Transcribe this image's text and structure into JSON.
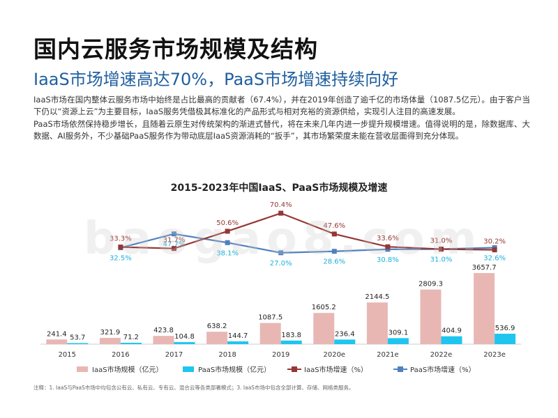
{
  "header": {
    "title": "国内云服务市场规模及结构",
    "subtitle": "IaaS市场增速高达70%，PaaS市场增速持续向好"
  },
  "intro": {
    "p1": "IaaS市场在国内整体云服务市场中始终是占比最高的贡献者（67.4%），并在2019年创造了逾千亿的市场体量（1087.5亿元）。由于客户当下仍以“资源上云”为主要目标，IaaS服务凭借极其标准化的产品形式与相对充裕的资源供给，实现引人注目的高速发展。",
    "p2": "PaaS市场依然保持稳步增长，且随着云原生对传统架构的渐进式替代，将在未来几年内进一步提升规模增速。值得说明的是，除数据库、大数据、AI服务外，不少基础PaaS服务作为带动底层IaaS资源消耗的“扳手”，其市场繁荣度未能在营收层面得到充分体现。"
  },
  "watermark": "baogao8.com",
  "footnote": "注释：1. IaaS与PaaS市场中均包含公有云、私有云、专有云、混合云等各类部署模式；3. IaaS市场中包含全部计算、存储、网络类服务。",
  "colors": {
    "iaas_bar": "#e8b7b4",
    "paas_bar": "#1ec6ef",
    "iaas_line": "#953735",
    "paas_line": "#4f81bd",
    "paas_label": "#1ab0dd"
  },
  "chart_data": {
    "type": "bar",
    "title": "2015-2023年中国IaaS、PaaS市场规模及增速",
    "categories": [
      "2015",
      "2016",
      "2017",
      "2018",
      "2019",
      "2020e",
      "2021e",
      "2022e",
      "2023e"
    ],
    "series": [
      {
        "name": "IaaS市场规模（亿元）",
        "type": "bar",
        "values": [
          241.4,
          321.9,
          423.8,
          638.2,
          1087.5,
          1605.2,
          2144.5,
          2809.3,
          3657.7
        ]
      },
      {
        "name": "PaaS市场规模（亿元）",
        "type": "bar",
        "values": [
          53.7,
          71.2,
          104.8,
          144.7,
          183.8,
          236.4,
          309.1,
          404.9,
          536.9
        ]
      },
      {
        "name": "IaaS市场增速（%）",
        "type": "line",
        "values": [
          null,
          33.3,
          31.7,
          50.6,
          70.4,
          47.6,
          33.6,
          31.0,
          30.2
        ],
        "labels": [
          "",
          "33.3%",
          "31.7%",
          "50.6%",
          "70.4%",
          "47.6%",
          "33.6%",
          "31.0%",
          "30.2%"
        ]
      },
      {
        "name": "PaaS市场增速（%）",
        "type": "line",
        "values": [
          null,
          32.5,
          47.7,
          38.1,
          27.0,
          28.6,
          30.8,
          31.0,
          32.6
        ],
        "labels": [
          "",
          "32.5%",
          "47.7%",
          "38.1%",
          "27.0%",
          "28.6%",
          "30.8%",
          "31.0%",
          "32.6%"
        ]
      }
    ],
    "bar_ylim": [
      0,
      3800
    ],
    "line_ylim": [
      20,
      75
    ],
    "grid": false,
    "legend_position": "bottom"
  }
}
